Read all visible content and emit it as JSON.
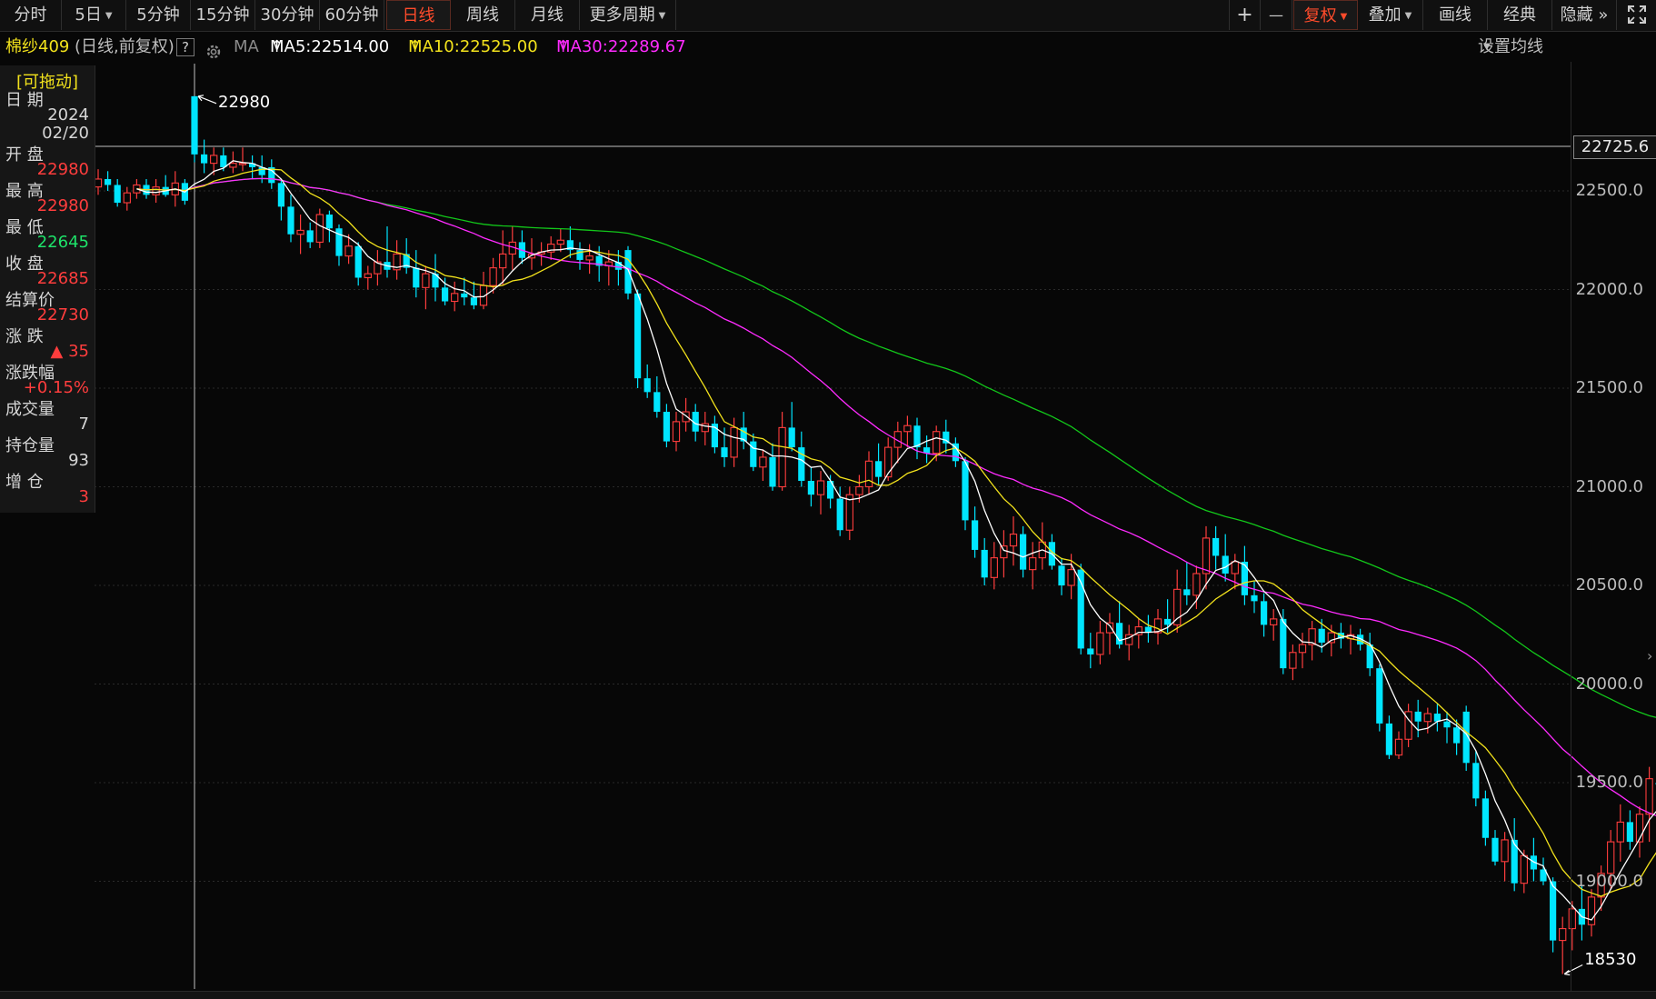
{
  "toolbar": {
    "periods": [
      "分时",
      "5日",
      "5分钟",
      "15分钟",
      "30分钟",
      "60分钟",
      "日线",
      "周线",
      "月线",
      "更多周期"
    ],
    "active_period": "日线",
    "right_buttons": [
      "+",
      "—",
      "复权",
      "叠加",
      "画线",
      "经典",
      "隐藏"
    ],
    "hide_arrows": "»",
    "fullscreen_icon": "fullscreen-icon"
  },
  "ma_bar": {
    "symbol": "棉纱409",
    "qualifier": "(日线,前复权)",
    "help": "?",
    "ma_label": "MA",
    "ma5": "MA5:22514.00",
    "ma10": "MA10:22525.00",
    "ma30": "MA30:22289.67",
    "arrow": "↑",
    "settings": "设置均线",
    "colors": {
      "ma5": "#ffffff",
      "ma10": "#f2e21c",
      "ma30": "#ff2bff",
      "ma60": "#12c81a"
    }
  },
  "info_panel": {
    "drag_tag": "[可拖动]",
    "date_label": "日 期",
    "year": "2024",
    "date": "02/20",
    "open_label": "开 盘",
    "open": "22980",
    "high_label": "最 高",
    "high": "22980",
    "low_label": "最 低",
    "low": "22645",
    "close_label": "收 盘",
    "close": "22685",
    "settle_label": "结算价",
    "settle": "22730",
    "change_label": "涨 跌",
    "change": "▲ 35",
    "pct_label": "涨跌幅",
    "pct": "+0.15%",
    "volume_label": "成交量",
    "volume": "7",
    "oi_label": "持仓量",
    "oi": "93",
    "oi_change_label": "增 仓",
    "oi_change": "3"
  },
  "price_axis": {
    "labels": [
      "22500.0",
      "22000.0",
      "21500.0",
      "21000.0",
      "20500.0",
      "20000.0",
      "19500.0",
      "19000.0"
    ],
    "crosshair_price": "22725.6"
  },
  "annotations": {
    "high_mark": "22980",
    "low_mark": "18530"
  },
  "chart_data": {
    "type": "candlestick",
    "up_color": "#ff3d3d",
    "down_color": "#00e5ff",
    "y_range": [
      18500,
      23100
    ],
    "candles": [
      [
        22520,
        22610,
        22480,
        22560
      ],
      [
        22560,
        22600,
        22500,
        22530
      ],
      [
        22530,
        22560,
        22420,
        22440
      ],
      [
        22440,
        22520,
        22400,
        22490
      ],
      [
        22490,
        22560,
        22460,
        22530
      ],
      [
        22530,
        22560,
        22460,
        22480
      ],
      [
        22480,
        22560,
        22440,
        22520
      ],
      [
        22520,
        22580,
        22470,
        22480
      ],
      [
        22480,
        22600,
        22420,
        22540
      ],
      [
        22540,
        22560,
        22430,
        22450
      ],
      [
        22980,
        22980,
        22645,
        22685
      ],
      [
        22685,
        22760,
        22590,
        22640
      ],
      [
        22640,
        22720,
        22580,
        22680
      ],
      [
        22680,
        22720,
        22600,
        22620
      ],
      [
        22620,
        22700,
        22590,
        22640
      ],
      [
        22640,
        22720,
        22600,
        22640
      ],
      [
        22640,
        22680,
        22560,
        22620
      ],
      [
        22620,
        22680,
        22540,
        22580
      ],
      [
        22620,
        22660,
        22510,
        22540
      ],
      [
        22540,
        22560,
        22350,
        22420
      ],
      [
        22420,
        22480,
        22240,
        22280
      ],
      [
        22280,
        22380,
        22180,
        22300
      ],
      [
        22300,
        22340,
        22210,
        22240
      ],
      [
        22240,
        22410,
        22210,
        22380
      ],
      [
        22380,
        22400,
        22240,
        22310
      ],
      [
        22310,
        22330,
        22120,
        22170
      ],
      [
        22170,
        22280,
        22130,
        22220
      ],
      [
        22220,
        22240,
        22020,
        22060
      ],
      [
        22060,
        22120,
        22000,
        22080
      ],
      [
        22080,
        22200,
        22020,
        22140
      ],
      [
        22140,
        22320,
        22060,
        22100
      ],
      [
        22100,
        22250,
        22050,
        22180
      ],
      [
        22180,
        22260,
        22080,
        22110
      ],
      [
        22110,
        22200,
        21960,
        22010
      ],
      [
        22010,
        22120,
        21900,
        22080
      ],
      [
        22080,
        22180,
        21940,
        22010
      ],
      [
        22010,
        22060,
        21920,
        21940
      ],
      [
        21940,
        22040,
        21890,
        21980
      ],
      [
        21980,
        22060,
        21920,
        21960
      ],
      [
        21960,
        22040,
        21900,
        21920
      ],
      [
        21920,
        22090,
        21900,
        22020
      ],
      [
        22020,
        22160,
        21980,
        22110
      ],
      [
        22110,
        22300,
        22020,
        22180
      ],
      [
        22180,
        22320,
        22100,
        22240
      ],
      [
        22240,
        22300,
        22130,
        22160
      ],
      [
        22160,
        22260,
        22100,
        22180
      ],
      [
        22180,
        22240,
        22120,
        22190
      ],
      [
        22190,
        22270,
        22150,
        22230
      ],
      [
        22230,
        22310,
        22190,
        22250
      ],
      [
        22250,
        22320,
        22160,
        22200
      ],
      [
        22200,
        22240,
        22100,
        22150
      ],
      [
        22150,
        22230,
        22080,
        22170
      ],
      [
        22170,
        22220,
        22040,
        22120
      ],
      [
        22120,
        22200,
        22020,
        22140
      ],
      [
        22140,
        22200,
        22020,
        22100
      ],
      [
        22200,
        22220,
        21950,
        21980
      ],
      [
        21980,
        22000,
        21500,
        21550
      ],
      [
        21550,
        21620,
        21450,
        21480
      ],
      [
        21480,
        21560,
        21350,
        21380
      ],
      [
        21380,
        21420,
        21200,
        21230
      ],
      [
        21230,
        21380,
        21180,
        21330
      ],
      [
        21330,
        21450,
        21280,
        21380
      ],
      [
        21380,
        21420,
        21230,
        21280
      ],
      [
        21280,
        21380,
        21210,
        21320
      ],
      [
        21320,
        21360,
        21170,
        21200
      ],
      [
        21200,
        21300,
        21100,
        21150
      ],
      [
        21150,
        21350,
        21100,
        21300
      ],
      [
        21300,
        21380,
        21190,
        21230
      ],
      [
        21230,
        21270,
        21080,
        21100
      ],
      [
        21100,
        21190,
        21030,
        21150
      ],
      [
        21150,
        21220,
        20980,
        21000
      ],
      [
        21000,
        21380,
        20980,
        21300
      ],
      [
        21300,
        21430,
        21180,
        21200
      ],
      [
        21200,
        21280,
        21000,
        21030
      ],
      [
        21030,
        21100,
        20900,
        20960
      ],
      [
        20960,
        21080,
        20860,
        21030
      ],
      [
        21030,
        21060,
        20890,
        20940
      ],
      [
        20940,
        21000,
        20750,
        20780
      ],
      [
        20780,
        21000,
        20730,
        20960
      ],
      [
        20960,
        21060,
        20920,
        21000
      ],
      [
        21000,
        21180,
        20960,
        21130
      ],
      [
        21130,
        21220,
        21010,
        21050
      ],
      [
        21050,
        21250,
        21030,
        21200
      ],
      [
        21200,
        21330,
        21120,
        21280
      ],
      [
        21280,
        21360,
        21200,
        21310
      ],
      [
        21310,
        21350,
        21140,
        21200
      ],
      [
        21200,
        21260,
        21120,
        21170
      ],
      [
        21170,
        21310,
        21130,
        21280
      ],
      [
        21280,
        21340,
        21170,
        21220
      ],
      [
        21220,
        21250,
        21100,
        21130
      ],
      [
        21130,
        21150,
        20780,
        20830
      ],
      [
        20830,
        20900,
        20640,
        20680
      ],
      [
        20680,
        20740,
        20500,
        20540
      ],
      [
        20540,
        20720,
        20480,
        20640
      ],
      [
        20640,
        20780,
        20540,
        20700
      ],
      [
        20700,
        20850,
        20600,
        20760
      ],
      [
        20760,
        20800,
        20540,
        20580
      ],
      [
        20580,
        20720,
        20480,
        20640
      ],
      [
        20640,
        20820,
        20580,
        20720
      ],
      [
        20720,
        20760,
        20580,
        20600
      ],
      [
        20600,
        20640,
        20450,
        20500
      ],
      [
        20500,
        20660,
        20430,
        20580
      ],
      [
        20580,
        20610,
        20150,
        20180
      ],
      [
        20180,
        20260,
        20080,
        20150
      ],
      [
        20150,
        20320,
        20100,
        20260
      ],
      [
        20260,
        20360,
        20150,
        20310
      ],
      [
        20310,
        20420,
        20180,
        20200
      ],
      [
        20200,
        20300,
        20120,
        20250
      ],
      [
        20250,
        20330,
        20180,
        20290
      ],
      [
        20290,
        20350,
        20210,
        20260
      ],
      [
        20260,
        20380,
        20200,
        20330
      ],
      [
        20330,
        20430,
        20260,
        20300
      ],
      [
        20300,
        20580,
        20260,
        20480
      ],
      [
        20480,
        20620,
        20400,
        20450
      ],
      [
        20450,
        20600,
        20380,
        20560
      ],
      [
        20560,
        20800,
        20480,
        20740
      ],
      [
        20740,
        20800,
        20580,
        20650
      ],
      [
        20650,
        20760,
        20520,
        20560
      ],
      [
        20560,
        20660,
        20480,
        20620
      ],
      [
        20620,
        20700,
        20400,
        20450
      ],
      [
        20450,
        20520,
        20360,
        20420
      ],
      [
        20420,
        20460,
        20240,
        20300
      ],
      [
        20300,
        20380,
        20220,
        20330
      ],
      [
        20330,
        20380,
        20050,
        20080
      ],
      [
        20080,
        20200,
        20020,
        20160
      ],
      [
        20160,
        20260,
        20080,
        20200
      ],
      [
        20200,
        20320,
        20120,
        20280
      ],
      [
        20280,
        20330,
        20160,
        20210
      ],
      [
        20210,
        20300,
        20140,
        20260
      ],
      [
        20260,
        20310,
        20180,
        20230
      ],
      [
        20230,
        20300,
        20150,
        20250
      ],
      [
        20250,
        20280,
        20170,
        20200
      ],
      [
        20200,
        20260,
        20040,
        20080
      ],
      [
        20080,
        20100,
        19760,
        19800
      ],
      [
        19800,
        19840,
        19620,
        19640
      ],
      [
        19640,
        19760,
        19620,
        19720
      ],
      [
        19720,
        19900,
        19680,
        19860
      ],
      [
        19860,
        19920,
        19730,
        19810
      ],
      [
        19810,
        19880,
        19750,
        19850
      ],
      [
        19850,
        19900,
        19760,
        19810
      ],
      [
        19810,
        19860,
        19700,
        19780
      ],
      [
        19780,
        19820,
        19640,
        19700
      ],
      [
        19860,
        19890,
        19560,
        19600
      ],
      [
        19600,
        19660,
        19380,
        19420
      ],
      [
        19420,
        19460,
        19180,
        19220
      ],
      [
        19220,
        19260,
        19080,
        19100
      ],
      [
        19100,
        19250,
        19000,
        19210
      ],
      [
        19210,
        19320,
        18950,
        18990
      ],
      [
        18990,
        19160,
        18940,
        19130
      ],
      [
        19130,
        19220,
        19000,
        19060
      ],
      [
        19060,
        19120,
        18980,
        19000
      ],
      [
        19000,
        19020,
        18640,
        18700
      ],
      [
        18700,
        18820,
        18530,
        18760
      ],
      [
        18760,
        18900,
        18650,
        18860
      ],
      [
        18860,
        18980,
        18700,
        18780
      ],
      [
        18780,
        18960,
        18720,
        18920
      ],
      [
        18920,
        19080,
        18850,
        19040
      ],
      [
        19040,
        19260,
        18960,
        19200
      ],
      [
        19200,
        19390,
        19100,
        19300
      ],
      [
        19300,
        19360,
        19160,
        19200
      ],
      [
        19200,
        19380,
        19120,
        19340
      ],
      [
        19340,
        19580,
        19200,
        19520
      ],
      [
        19500,
        19700,
        19440,
        19490
      ]
    ]
  }
}
